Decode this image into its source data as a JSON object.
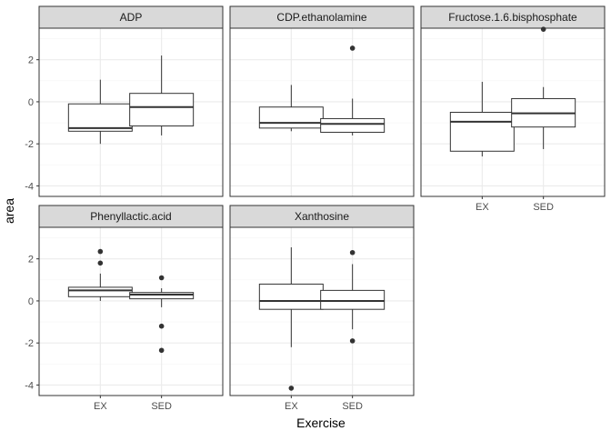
{
  "chart_data": {
    "type": "boxplot",
    "xlabel": "Exercise",
    "ylabel": "area",
    "categories": [
      "EX",
      "SED"
    ],
    "y_ticks": [
      -4,
      -2,
      0,
      2
    ],
    "ylim": [
      -4.5,
      3.5
    ],
    "grid": true,
    "theme_colors": {
      "strip_fill": "#d9d9d9",
      "panel_border": "#333333",
      "grid_major": "#ebebeb",
      "grid_minor": "#f5f5f5",
      "box_line": "#333333",
      "outlier": "#333333"
    },
    "panels": [
      {
        "name": "ADP",
        "boxes": [
          {
            "category": "EX",
            "whisker_low": -2.0,
            "q1": -1.4,
            "median": -1.25,
            "q3": -0.1,
            "whisker_high": 1.05,
            "outliers": []
          },
          {
            "category": "SED",
            "whisker_low": -1.6,
            "q1": -1.15,
            "median": -0.25,
            "q3": 0.4,
            "whisker_high": 2.2,
            "outliers": []
          }
        ]
      },
      {
        "name": "CDP.ethanolamine",
        "boxes": [
          {
            "category": "EX",
            "whisker_low": -1.4,
            "q1": -1.25,
            "median": -1.0,
            "q3": -0.25,
            "whisker_high": 0.8,
            "outliers": []
          },
          {
            "category": "SED",
            "whisker_low": -1.6,
            "q1": -1.45,
            "median": -1.05,
            "q3": -0.8,
            "whisker_high": 0.15,
            "outliers": [
              2.55
            ]
          }
        ]
      },
      {
        "name": "Fructose.1.6.bisphosphate",
        "boxes": [
          {
            "category": "EX",
            "whisker_low": -2.6,
            "q1": -2.35,
            "median": -0.95,
            "q3": -0.5,
            "whisker_high": 0.95,
            "outliers": []
          },
          {
            "category": "SED",
            "whisker_low": -2.25,
            "q1": -1.2,
            "median": -0.55,
            "q3": 0.15,
            "whisker_high": 0.7,
            "outliers": [
              3.45
            ]
          }
        ]
      },
      {
        "name": "Phenyllactic.acid",
        "boxes": [
          {
            "category": "EX",
            "whisker_low": 0.0,
            "q1": 0.2,
            "median": 0.5,
            "q3": 0.65,
            "whisker_high": 1.3,
            "outliers": [
              2.35,
              1.8
            ]
          },
          {
            "category": "SED",
            "whisker_low": -0.3,
            "q1": 0.1,
            "median": 0.3,
            "q3": 0.4,
            "whisker_high": 0.6,
            "outliers": [
              1.1,
              -1.2,
              -2.35
            ]
          }
        ]
      },
      {
        "name": "Xanthosine",
        "boxes": [
          {
            "category": "EX",
            "whisker_low": -2.2,
            "q1": -0.4,
            "median": 0.0,
            "q3": 0.8,
            "whisker_high": 2.55,
            "outliers": [
              -4.15
            ]
          },
          {
            "category": "SED",
            "whisker_low": -1.35,
            "q1": -0.4,
            "median": 0.0,
            "q3": 0.5,
            "whisker_high": 1.75,
            "outliers": [
              2.3,
              -1.9
            ]
          }
        ]
      }
    ]
  }
}
